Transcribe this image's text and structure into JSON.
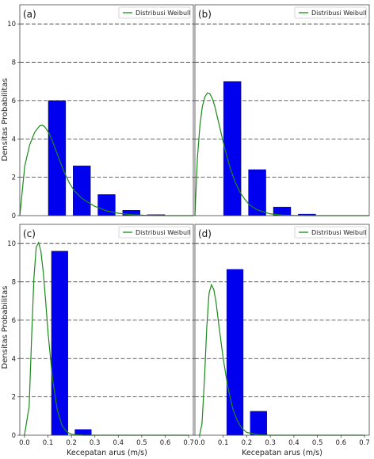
{
  "figure": {
    "ylabel": "Densitas Probabilitas",
    "xlabel": "Kecepatan arus (m/s)",
    "legend_label": "Distribusi Weibull",
    "line_color": "#1a8a1a",
    "bar_color": "#0000ee",
    "grid_style": "dashed horizontal"
  },
  "chart_data": [
    {
      "type": "bar",
      "panel_label": "(a)",
      "xlim": [
        0.0,
        0.7
      ],
      "ylim": [
        0,
        11
      ],
      "yticks": [
        0,
        2,
        4,
        6,
        8,
        10
      ],
      "xticks": [],
      "bar_width": 0.07,
      "bars": [
        {
          "x": 0.15,
          "y": 6.0
        },
        {
          "x": 0.25,
          "y": 2.6
        },
        {
          "x": 0.35,
          "y": 1.1
        },
        {
          "x": 0.45,
          "y": 0.28
        },
        {
          "x": 0.55,
          "y": 0.05
        }
      ],
      "series": [
        {
          "name": "Distribusi Weibull",
          "type": "line",
          "x": [
            0.0,
            0.02,
            0.04,
            0.06,
            0.08,
            0.09,
            0.1,
            0.12,
            0.14,
            0.16,
            0.18,
            0.2,
            0.22,
            0.25,
            0.3,
            0.35,
            0.4,
            0.45,
            0.5,
            0.55,
            0.6,
            0.7
          ],
          "y": [
            0.0,
            2.6,
            3.7,
            4.35,
            4.68,
            4.72,
            4.65,
            4.25,
            3.6,
            2.9,
            2.25,
            1.7,
            1.3,
            0.9,
            0.5,
            0.25,
            0.12,
            0.05,
            0.02,
            0.01,
            0.0,
            0.0
          ]
        }
      ],
      "legend": "top-right"
    },
    {
      "type": "bar",
      "panel_label": "(b)",
      "xlim": [
        0.0,
        0.7
      ],
      "ylim": [
        0,
        11
      ],
      "yticks": [
        0,
        2,
        4,
        6,
        8,
        10
      ],
      "xticks": [],
      "bar_width": 0.07,
      "bars": [
        {
          "x": 0.15,
          "y": 7.0
        },
        {
          "x": 0.25,
          "y": 2.4
        },
        {
          "x": 0.35,
          "y": 0.45
        },
        {
          "x": 0.45,
          "y": 0.08
        }
      ],
      "series": [
        {
          "name": "Distribusi Weibull",
          "type": "line",
          "x": [
            0.0,
            0.01,
            0.02,
            0.03,
            0.04,
            0.05,
            0.06,
            0.07,
            0.08,
            0.1,
            0.12,
            0.14,
            0.16,
            0.18,
            0.2,
            0.22,
            0.25,
            0.3,
            0.35,
            0.4,
            0.5,
            0.7
          ],
          "y": [
            0.0,
            3.0,
            4.7,
            5.7,
            6.2,
            6.4,
            6.35,
            6.1,
            5.7,
            4.6,
            3.5,
            2.55,
            1.8,
            1.25,
            0.85,
            0.55,
            0.3,
            0.1,
            0.03,
            0.01,
            0.0,
            0.0
          ]
        }
      ],
      "legend": "top-right"
    },
    {
      "type": "bar",
      "panel_label": "(c)",
      "xlim": [
        -0.02,
        0.72
      ],
      "ylim": [
        0,
        11
      ],
      "yticks": [
        0,
        2,
        4,
        6,
        8,
        10
      ],
      "xticks": [
        "0.0",
        "0.1",
        "0.2",
        "0.3",
        "0.4",
        "0.5",
        "0.6",
        "0.7"
      ],
      "bar_width": 0.07,
      "bars": [
        {
          "x": 0.15,
          "y": 9.6
        },
        {
          "x": 0.25,
          "y": 0.3
        }
      ],
      "series": [
        {
          "name": "Distribusi Weibull",
          "type": "line",
          "x": [
            0.0,
            0.02,
            0.03,
            0.04,
            0.05,
            0.06,
            0.07,
            0.08,
            0.09,
            0.1,
            0.12,
            0.14,
            0.16,
            0.18,
            0.2,
            0.25,
            0.3,
            0.7
          ],
          "y": [
            0.0,
            1.5,
            5.0,
            8.2,
            9.8,
            10.05,
            9.6,
            8.5,
            7.0,
            5.4,
            2.9,
            1.3,
            0.5,
            0.18,
            0.05,
            0.0,
            0.0,
            0.0
          ]
        }
      ],
      "legend": "top-right"
    },
    {
      "type": "bar",
      "panel_label": "(d)",
      "xlim": [
        -0.02,
        0.72
      ],
      "ylim": [
        0,
        11
      ],
      "yticks": [
        0,
        2,
        4,
        6,
        8,
        10
      ],
      "xticks": [
        "0.0",
        "0.1",
        "0.2",
        "0.3",
        "0.4",
        "0.5",
        "0.6",
        "0.7"
      ],
      "bar_width": 0.07,
      "bars": [
        {
          "x": 0.15,
          "y": 8.65
        },
        {
          "x": 0.25,
          "y": 1.25
        }
      ],
      "series": [
        {
          "name": "Distribusi Weibull",
          "type": "line",
          "x": [
            0.0,
            0.01,
            0.02,
            0.03,
            0.04,
            0.05,
            0.06,
            0.07,
            0.08,
            0.1,
            0.12,
            0.14,
            0.16,
            0.18,
            0.2,
            0.25,
            0.3,
            0.4,
            0.7
          ],
          "y": [
            0.0,
            0.6,
            2.8,
            5.6,
            7.4,
            7.85,
            7.6,
            6.9,
            5.9,
            4.0,
            2.5,
            1.4,
            0.75,
            0.35,
            0.15,
            0.02,
            0.0,
            0.0,
            0.0
          ]
        }
      ],
      "legend": "top-right"
    }
  ]
}
